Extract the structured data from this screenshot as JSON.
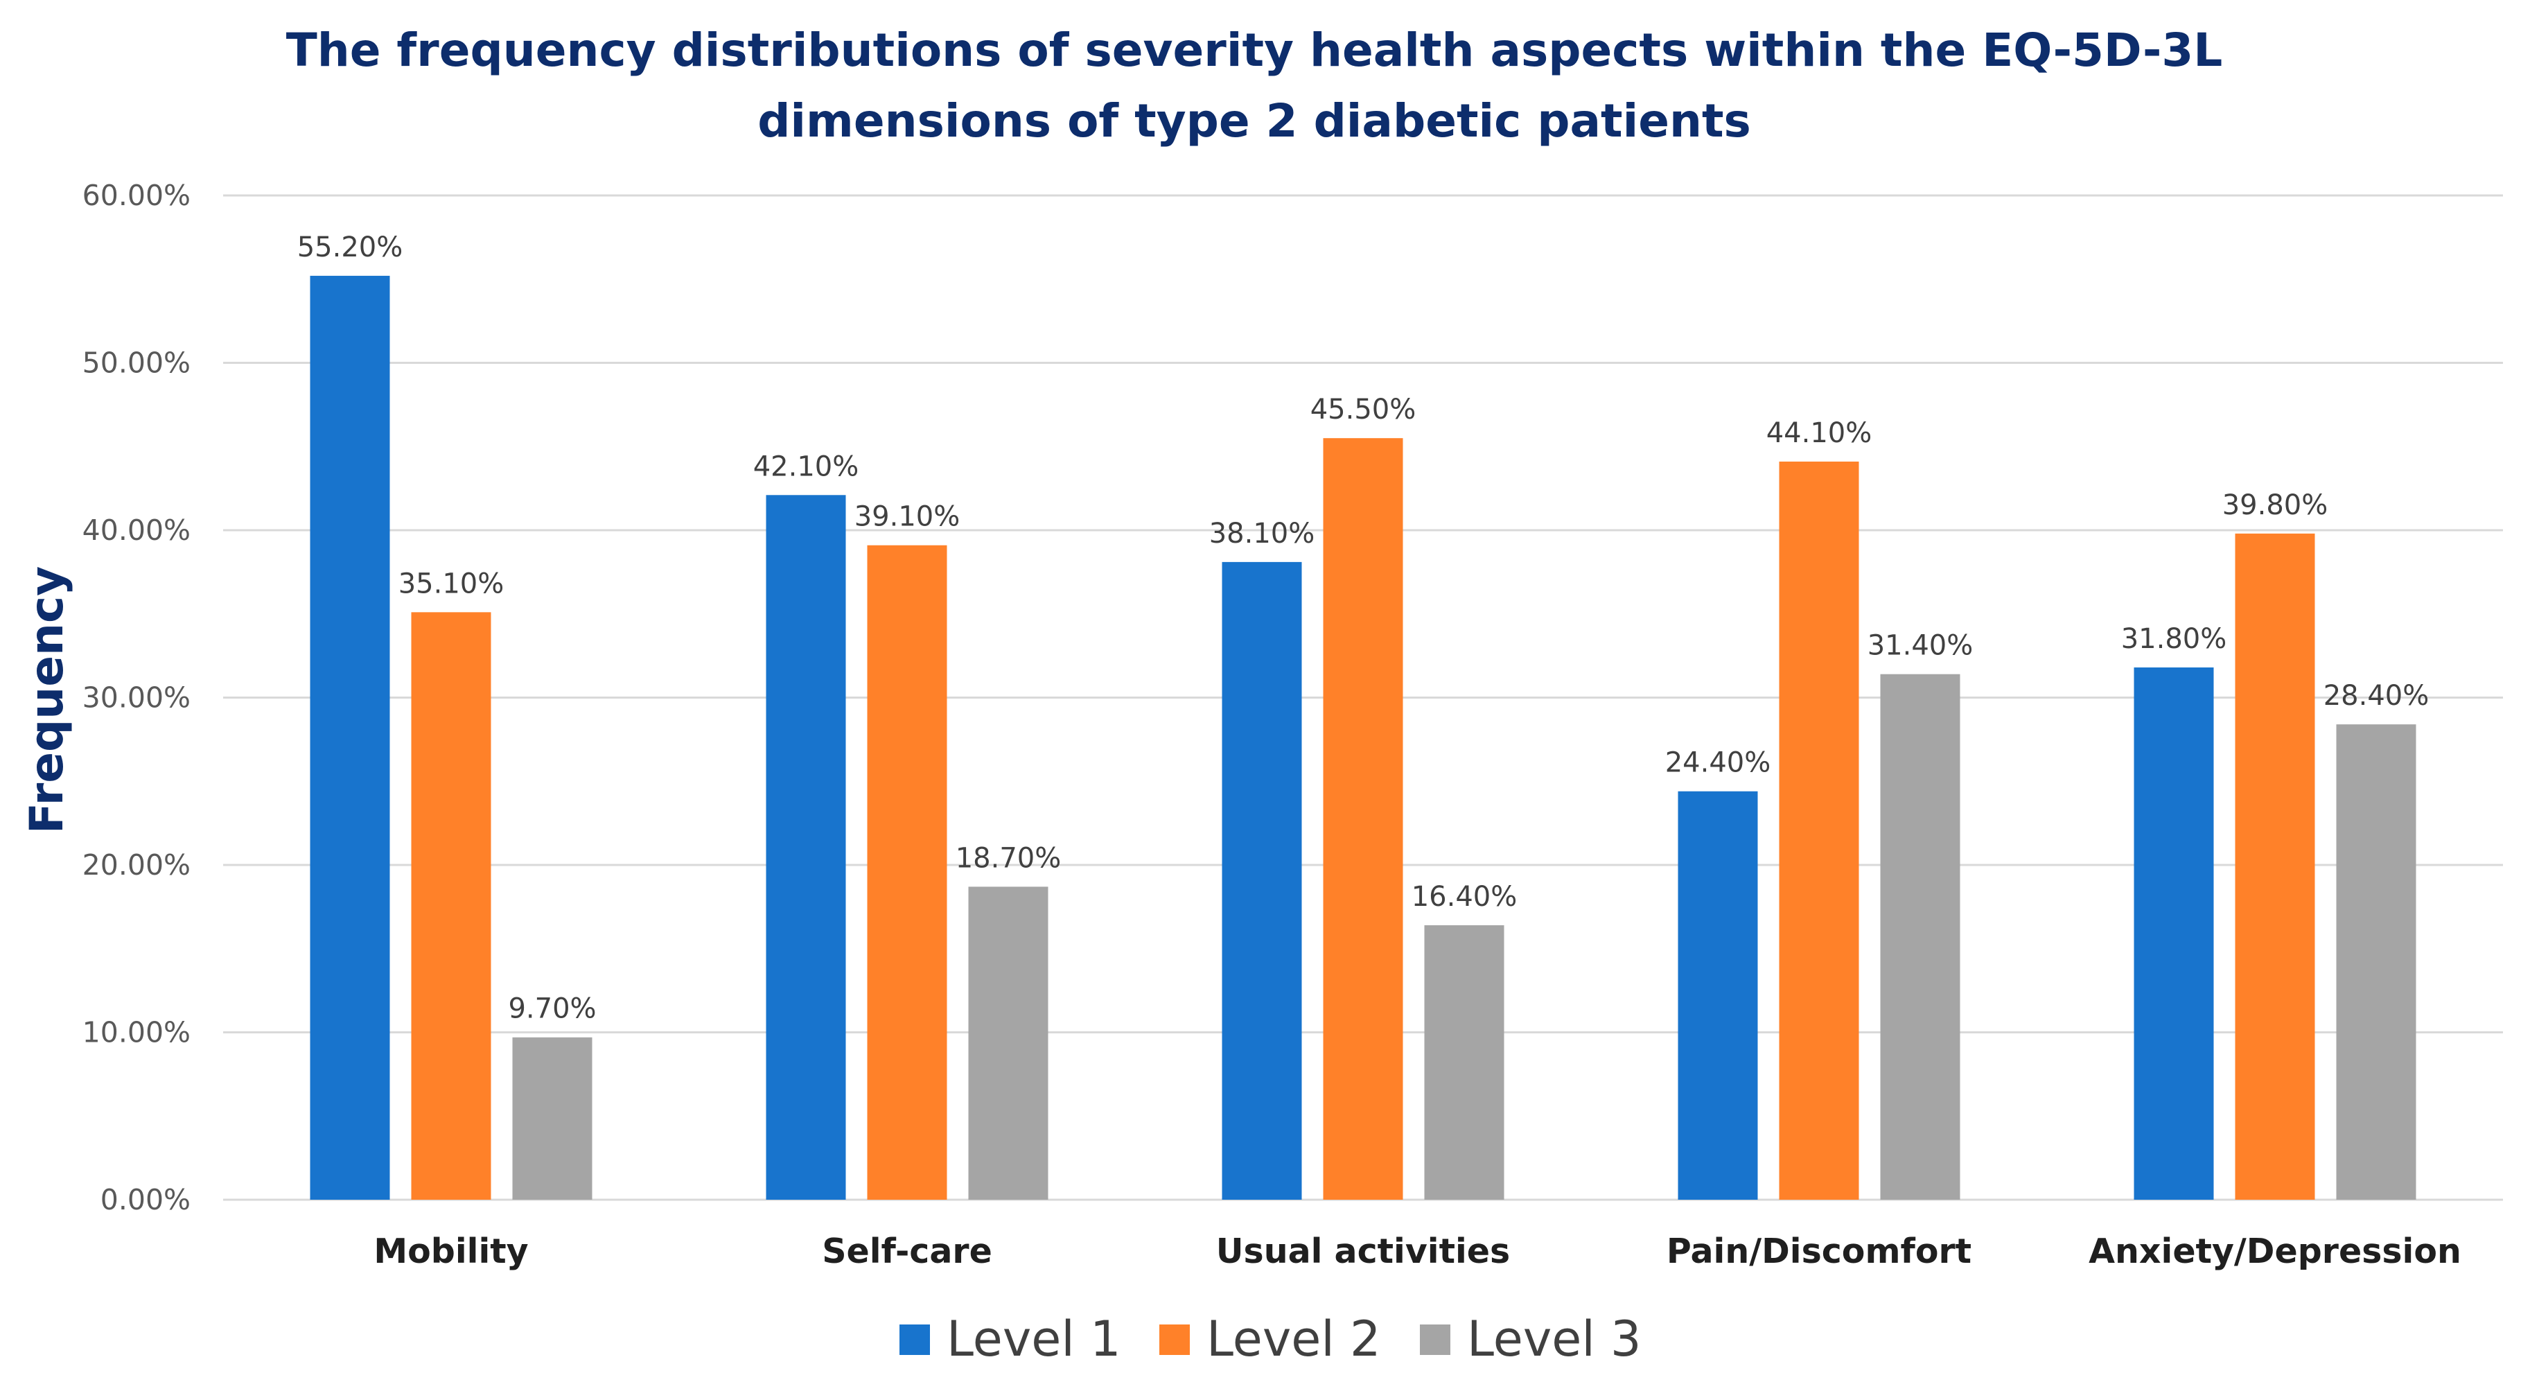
{
  "chart_data": {
    "type": "bar",
    "title_lines": [
      "The frequency distributions of severity health aspects within the EQ-5D-3L",
      "dimensions of type 2 diabetic patients"
    ],
    "xlabel": "",
    "ylabel": "Frequency",
    "ylim": [
      0,
      60
    ],
    "yticks": [
      0,
      10,
      20,
      30,
      40,
      50,
      60
    ],
    "ytick_labels": [
      "0.00%",
      "10.00%",
      "20.00%",
      "30.00%",
      "40.00%",
      "50.00%",
      "60.00%"
    ],
    "grid": true,
    "legend_position": "bottom",
    "categories": [
      "Mobility",
      "Self-care",
      "Usual activities",
      "Pain/Discomfort",
      "Anxiety/Depression"
    ],
    "series": [
      {
        "name": "Level 1",
        "color": "#1874CD",
        "values": [
          55.2,
          42.1,
          38.1,
          24.4,
          31.8
        ],
        "labels": [
          "55.20%",
          "42.10%",
          "38.10%",
          "24.40%",
          "31.80%"
        ]
      },
      {
        "name": "Level 2",
        "color": "#FF8129",
        "values": [
          35.1,
          39.1,
          45.5,
          44.1,
          39.8
        ],
        "labels": [
          "35.10%",
          "39.10%",
          "45.50%",
          "44.10%",
          "39.80%"
        ]
      },
      {
        "name": "Level 3",
        "color": "#A5A5A5",
        "values": [
          9.7,
          18.7,
          16.4,
          31.4,
          28.4
        ],
        "labels": [
          "9.70%",
          "18.70%",
          "16.40%",
          "31.40%",
          "28.40%"
        ]
      }
    ],
    "colors": {
      "title": "#0D2D6C",
      "ylabel": "#0D2D6C",
      "grid": "#D9D9D9",
      "tick": "#595959",
      "category": "#1F1F1F",
      "data_label": "#404040"
    }
  }
}
